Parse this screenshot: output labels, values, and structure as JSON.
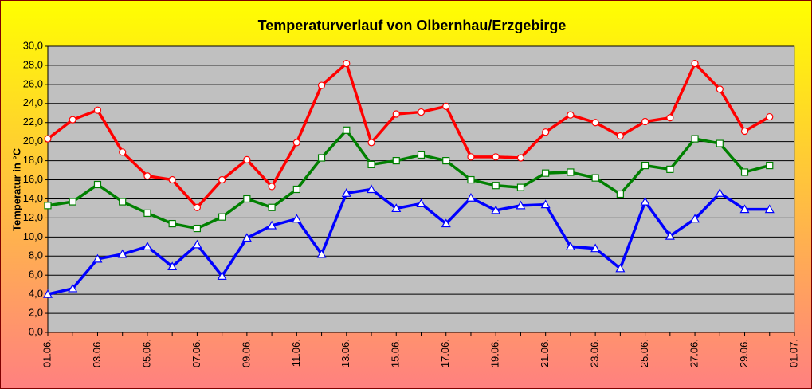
{
  "chart_data": {
    "type": "line",
    "title": "Temperaturverlauf von Olbernhau/Erzgebirge",
    "y_label": "Temperatur in °C",
    "categories": [
      "01.06.",
      null,
      "03.06.",
      null,
      "05.06.",
      null,
      "07.06.",
      null,
      "09.06.",
      null,
      "11.06.",
      null,
      "13.06.",
      null,
      "15.06.",
      null,
      "17.06.",
      null,
      "19.06.",
      null,
      "21.06.",
      null,
      "23.06.",
      null,
      "25.06.",
      null,
      "27.06.",
      null,
      "29.06.",
      null,
      "01.07."
    ],
    "series": [
      {
        "color": "#ff0000",
        "marker": "circle",
        "values": [
          20.3,
          22.3,
          23.3,
          18.9,
          16.4,
          16.0,
          13.1,
          16.0,
          18.1,
          15.3,
          19.9,
          25.9,
          28.2,
          19.9,
          22.9,
          23.1,
          23.7,
          18.4,
          18.4,
          18.3,
          21.0,
          22.8,
          22.0,
          20.6,
          22.1,
          22.5,
          28.2,
          25.5,
          21.1,
          22.6,
          null
        ]
      },
      {
        "color": "#008000",
        "marker": "square",
        "values": [
          13.3,
          13.7,
          15.5,
          13.7,
          12.5,
          11.4,
          10.9,
          12.1,
          14.0,
          13.1,
          15.0,
          18.3,
          21.2,
          17.6,
          18.0,
          18.6,
          18.0,
          16.0,
          15.4,
          15.2,
          16.7,
          16.8,
          16.2,
          14.5,
          17.5,
          17.1,
          20.3,
          19.8,
          16.8,
          17.5,
          null
        ]
      },
      {
        "color": "#0000ff",
        "marker": "triangle",
        "values": [
          4.0,
          4.6,
          7.7,
          8.2,
          9.0,
          6.9,
          9.2,
          5.9,
          9.9,
          11.2,
          11.9,
          8.2,
          14.6,
          15.0,
          13.0,
          13.5,
          11.4,
          14.1,
          12.8,
          13.3,
          13.4,
          9.0,
          8.8,
          6.7,
          13.7,
          10.1,
          11.9,
          14.6,
          12.9,
          12.9,
          null
        ]
      }
    ],
    "ylim": [
      0,
      30
    ],
    "yticks": [
      {
        "value": 0,
        "label": "0,0"
      },
      {
        "value": 2,
        "label": "2,0"
      },
      {
        "value": 4,
        "label": "4,0"
      },
      {
        "value": 6,
        "label": "6,0"
      },
      {
        "value": 8,
        "label": "8,0"
      },
      {
        "value": 10,
        "label": "10,0"
      },
      {
        "value": 12,
        "label": "12,0"
      },
      {
        "value": 14,
        "label": "14,0"
      },
      {
        "value": 16,
        "label": "16,0"
      },
      {
        "value": 18,
        "label": "18,0"
      },
      {
        "value": 20,
        "label": "20,0"
      },
      {
        "value": 22,
        "label": "22,0"
      },
      {
        "value": 24,
        "label": "24,0"
      },
      {
        "value": 26,
        "label": "26,0"
      },
      {
        "value": 28,
        "label": "28,0"
      },
      {
        "value": 30,
        "label": "30,0"
      }
    ],
    "grid": true
  }
}
